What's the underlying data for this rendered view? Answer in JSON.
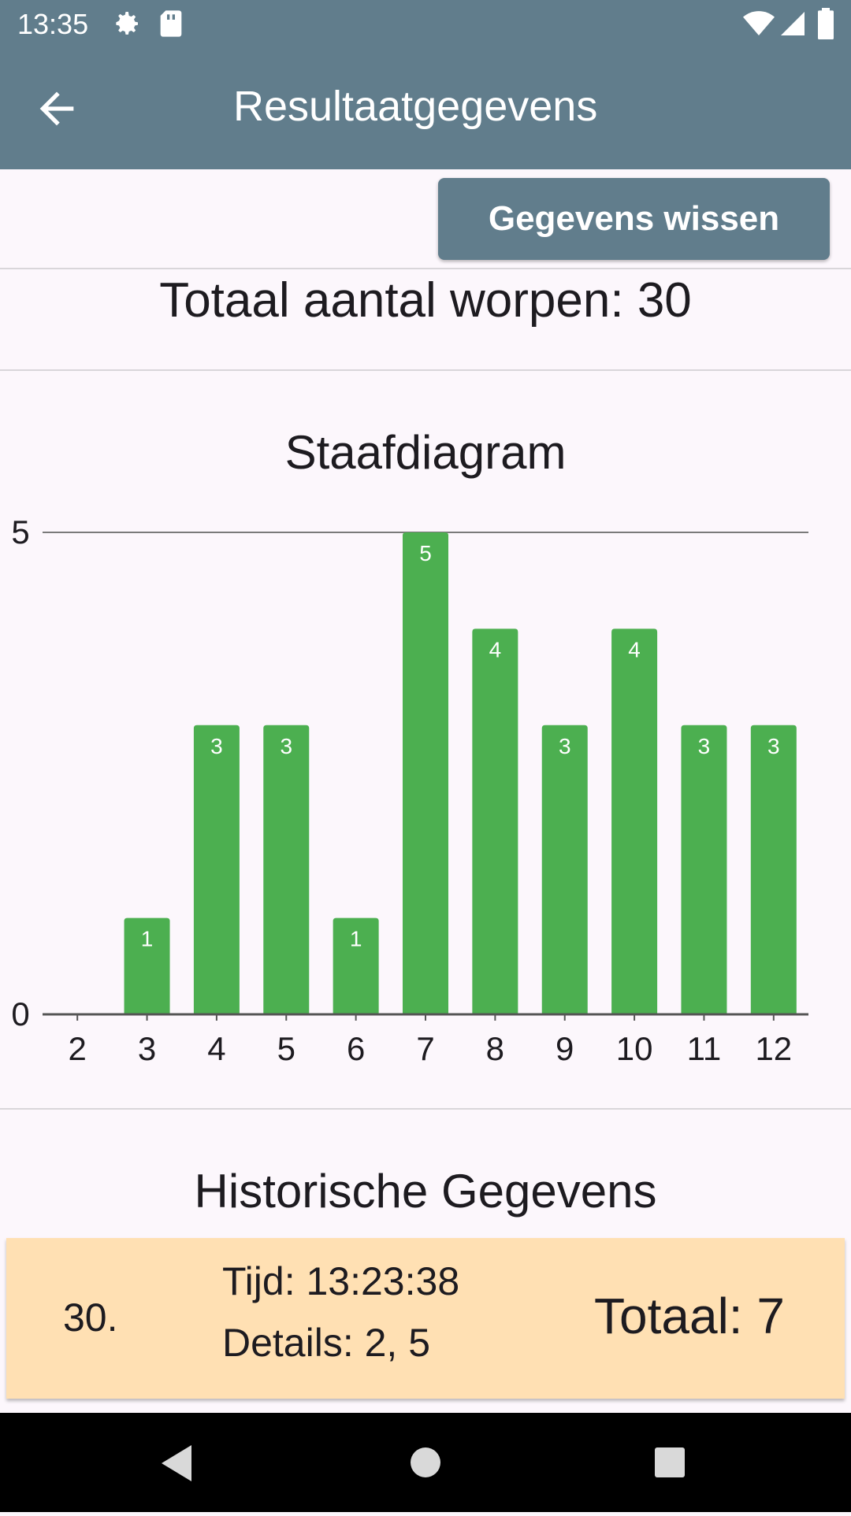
{
  "status_bar": {
    "time": "13:35",
    "icons": [
      "settings-icon",
      "sd-card-icon",
      "wifi-icon",
      "signal-icon",
      "battery-icon"
    ]
  },
  "app_bar": {
    "title": "Resultaatgegevens",
    "back_icon": "arrow-back-icon"
  },
  "actions": {
    "clear_label": "Gegevens wissen"
  },
  "summary": {
    "total_label": "Totaal aantal worpen: 30"
  },
  "chart_section": {
    "title": "Staafdiagram"
  },
  "chart_data": {
    "type": "bar",
    "title": "Staafdiagram",
    "categories": [
      "2",
      "3",
      "4",
      "5",
      "6",
      "7",
      "8",
      "9",
      "10",
      "11",
      "12"
    ],
    "values": [
      0,
      1,
      3,
      3,
      1,
      5,
      4,
      3,
      4,
      3,
      3
    ],
    "ylim": [
      0,
      5
    ],
    "y_ticks": [
      "0",
      "5"
    ],
    "grid": false,
    "bar_color": "#4caf50",
    "value_label_color": "#ffffff"
  },
  "history": {
    "title": "Historische Gegevens",
    "entries": [
      {
        "index": "30.",
        "time": "Tijd: 13:23:38",
        "details": "Details: 2, 5",
        "total": "Totaal: 7"
      }
    ]
  },
  "nav_bar": {
    "buttons": [
      "back-triangle-icon",
      "home-circle-icon",
      "recents-square-icon"
    ]
  },
  "colors": {
    "app_bar": "#617d8c",
    "background": "#fcf7fc",
    "history_card": "#ffe0b3",
    "bar": "#4caf50"
  }
}
